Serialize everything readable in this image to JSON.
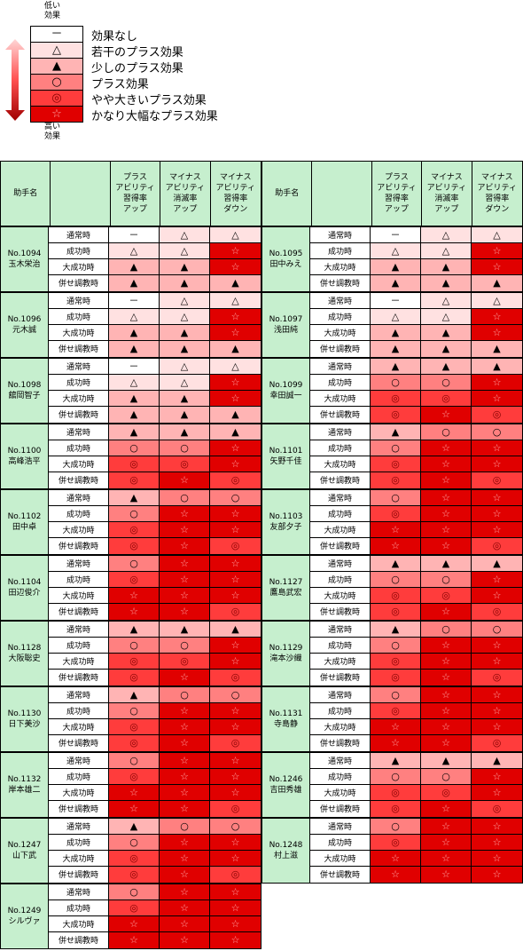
{
  "legend": {
    "top_label": "低い\n効果",
    "bottom_label": "高い\n効果",
    "items": [
      {
        "symbol": "－",
        "label": "効果なし",
        "level": 0
      },
      {
        "symbol": "△",
        "label": "若干のプラス効果",
        "level": 1
      },
      {
        "symbol": "▲",
        "label": "少しのプラス効果",
        "level": 2
      },
      {
        "symbol": "○",
        "label": "プラス効果",
        "level": 3
      },
      {
        "symbol": "◎",
        "label": "やや大きいプラス効果",
        "level": 4
      },
      {
        "symbol": "☆",
        "label": "かなり大幅なプラス効果",
        "level": 5
      }
    ]
  },
  "header": {
    "name": "助手名",
    "col1": "プラス\nアビリティ\n習得率\nアップ",
    "col2": "マイナス\nアビリティ\n消滅率\nアップ",
    "col3": "マイナス\nアビリティ\n習得率\nダウン"
  },
  "row_labels": [
    "通常時",
    "成功時",
    "大成功時",
    "併せ調教時"
  ],
  "columns": [
    [
      {
        "no": "No.1094",
        "name": "玉木栄治",
        "values": [
          [
            0,
            1,
            1
          ],
          [
            1,
            1,
            5
          ],
          [
            2,
            2,
            5
          ],
          [
            2,
            2,
            2
          ]
        ]
      },
      {
        "no": "No.1096",
        "name": "元木誠",
        "values": [
          [
            0,
            1,
            1
          ],
          [
            1,
            1,
            5
          ],
          [
            2,
            2,
            5
          ],
          [
            2,
            2,
            2
          ]
        ]
      },
      {
        "no": "No.1098",
        "name": "舘岡智子",
        "values": [
          [
            0,
            1,
            1
          ],
          [
            1,
            1,
            5
          ],
          [
            2,
            2,
            5
          ],
          [
            2,
            2,
            2
          ]
        ]
      },
      {
        "no": "No.1100",
        "name": "高峰浩平",
        "values": [
          [
            2,
            2,
            2
          ],
          [
            3,
            3,
            5
          ],
          [
            4,
            4,
            5
          ],
          [
            4,
            5,
            4
          ]
        ]
      },
      {
        "no": "No.1102",
        "name": "田中卓",
        "values": [
          [
            2,
            3,
            3
          ],
          [
            3,
            5,
            5
          ],
          [
            4,
            5,
            5
          ],
          [
            4,
            5,
            4
          ]
        ]
      },
      {
        "no": "No.1104",
        "name": "田辺俊介",
        "values": [
          [
            3,
            5,
            5
          ],
          [
            4,
            5,
            5
          ],
          [
            5,
            5,
            5
          ],
          [
            5,
            5,
            4
          ]
        ]
      },
      {
        "no": "No.1128",
        "name": "大阪聡史",
        "values": [
          [
            2,
            2,
            2
          ],
          [
            3,
            3,
            5
          ],
          [
            4,
            4,
            5
          ],
          [
            4,
            5,
            4
          ]
        ]
      },
      {
        "no": "No.1130",
        "name": "日下美沙",
        "values": [
          [
            2,
            3,
            3
          ],
          [
            3,
            5,
            5
          ],
          [
            4,
            5,
            5
          ],
          [
            4,
            5,
            4
          ]
        ]
      },
      {
        "no": "No.1132",
        "name": "岸本雄二",
        "values": [
          [
            3,
            5,
            5
          ],
          [
            4,
            5,
            5
          ],
          [
            5,
            5,
            5
          ],
          [
            5,
            5,
            4
          ]
        ]
      },
      {
        "no": "No.1247",
        "name": "山下武",
        "values": [
          [
            2,
            3,
            3
          ],
          [
            3,
            5,
            5
          ],
          [
            4,
            5,
            5
          ],
          [
            4,
            5,
            4
          ]
        ]
      },
      {
        "no": "No.1249",
        "name": "シルヴァ",
        "values": [
          [
            3,
            5,
            5
          ],
          [
            4,
            5,
            5
          ],
          [
            5,
            5,
            5
          ],
          [
            5,
            5,
            5
          ]
        ]
      }
    ],
    [
      {
        "no": "No.1095",
        "name": "田中みえ",
        "values": [
          [
            0,
            1,
            1
          ],
          [
            1,
            1,
            5
          ],
          [
            2,
            2,
            5
          ],
          [
            2,
            2,
            2
          ]
        ]
      },
      {
        "no": "No.1097",
        "name": "浅田純",
        "values": [
          [
            0,
            1,
            1
          ],
          [
            1,
            1,
            5
          ],
          [
            2,
            2,
            5
          ],
          [
            2,
            2,
            2
          ]
        ]
      },
      {
        "no": "No.1099",
        "name": "幸田誠一",
        "values": [
          [
            2,
            2,
            2
          ],
          [
            3,
            3,
            5
          ],
          [
            4,
            4,
            5
          ],
          [
            4,
            5,
            4
          ]
        ]
      },
      {
        "no": "No.1101",
        "name": "矢野千佳",
        "values": [
          [
            2,
            3,
            3
          ],
          [
            3,
            5,
            5
          ],
          [
            4,
            5,
            5
          ],
          [
            4,
            5,
            4
          ]
        ]
      },
      {
        "no": "No.1103",
        "name": "友部夕子",
        "values": [
          [
            3,
            5,
            5
          ],
          [
            4,
            5,
            5
          ],
          [
            5,
            5,
            5
          ],
          [
            5,
            5,
            4
          ]
        ]
      },
      {
        "no": "No.1127",
        "name": "鷹島武宏",
        "values": [
          [
            2,
            2,
            2
          ],
          [
            3,
            3,
            5
          ],
          [
            4,
            4,
            5
          ],
          [
            4,
            5,
            4
          ]
        ]
      },
      {
        "no": "No.1129",
        "name": "滝本沙織",
        "values": [
          [
            2,
            3,
            3
          ],
          [
            3,
            5,
            5
          ],
          [
            4,
            5,
            5
          ],
          [
            4,
            5,
            4
          ]
        ]
      },
      {
        "no": "No.1131",
        "name": "寺島静",
        "values": [
          [
            3,
            5,
            5
          ],
          [
            4,
            5,
            5
          ],
          [
            5,
            5,
            5
          ],
          [
            5,
            5,
            4
          ]
        ]
      },
      {
        "no": "No.1246",
        "name": "吉田秀雄",
        "values": [
          [
            2,
            2,
            2
          ],
          [
            3,
            3,
            5
          ],
          [
            4,
            4,
            5
          ],
          [
            4,
            5,
            4
          ]
        ]
      },
      {
        "no": "No.1248",
        "name": "村上滋",
        "values": [
          [
            3,
            5,
            5
          ],
          [
            4,
            5,
            5
          ],
          [
            5,
            5,
            5
          ],
          [
            5,
            5,
            5
          ]
        ]
      }
    ]
  ],
  "colors": {
    "header_bg": "#c6efce",
    "level0": "#ffffff",
    "level1": "#ffe1e1",
    "level2": "#ffb4b4",
    "level3": "#ff8080",
    "level4": "#ff3c3c",
    "level5": "#e00000"
  }
}
